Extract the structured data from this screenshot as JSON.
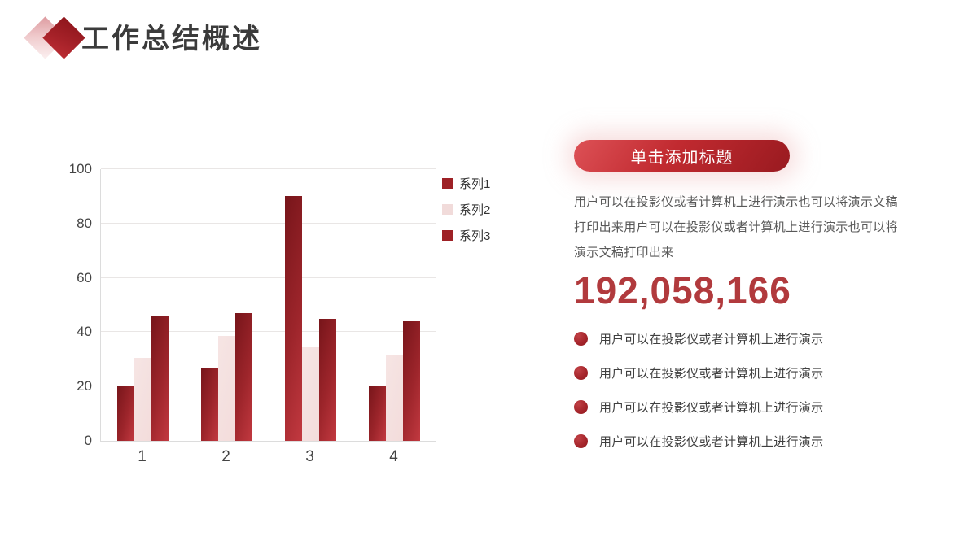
{
  "header": {
    "title": "工作总结概述"
  },
  "chart_data": {
    "type": "bar",
    "title": "",
    "xlabel": "",
    "ylabel": "",
    "categories": [
      "1",
      "2",
      "3",
      "4"
    ],
    "series": [
      {
        "name": "系列1",
        "style": "dark",
        "values": [
          20.5,
          27,
          90,
          20.5
        ]
      },
      {
        "name": "系列2",
        "style": "light",
        "values": [
          30.5,
          38.5,
          34.5,
          31.5
        ]
      },
      {
        "name": "系列3",
        "style": "dark",
        "values": [
          46,
          47,
          45,
          44
        ]
      }
    ],
    "ylim": [
      0,
      100
    ],
    "yticks": [
      0,
      20,
      40,
      60,
      80,
      100
    ],
    "grid": true,
    "legend_position": "right"
  },
  "colors": {
    "accent": "#b02a30",
    "bar_dark_gradient": [
      "#77151a",
      "#c23940"
    ],
    "bar_light": "#f3dcdb",
    "big_number_color": "#b13a3d"
  },
  "panel": {
    "button_label": "单击添加标题",
    "paragraph": "用户可以在投影仪或者计算机上进行演示也可以将演示文稿打印出来用户可以在投影仪或者计算机上进行演示也可以将演示文稿打印出来",
    "big_number": "192,058,166",
    "bullets": [
      "用户可以在投影仪或者计算机上进行演示",
      "用户可以在投影仪或者计算机上进行演示",
      "用户可以在投影仪或者计算机上进行演示",
      "用户可以在投影仪或者计算机上进行演示"
    ]
  }
}
